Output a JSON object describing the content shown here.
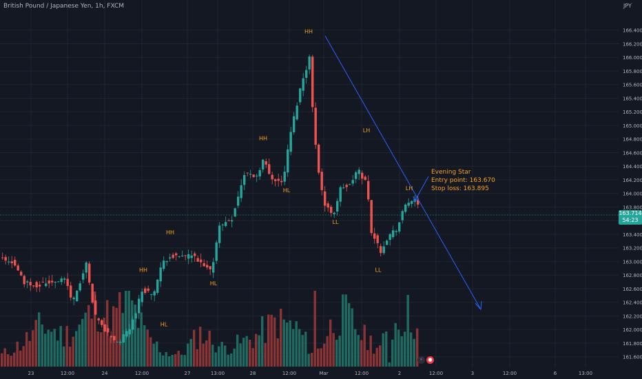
{
  "header": {
    "title": "British Pound / Japanese Yen, 1h, FXCM",
    "currency": "JPY"
  },
  "last_price": {
    "value": "163.714",
    "countdown": "54:23"
  },
  "annotation": {
    "title": "Evening Star",
    "entry": "Entry point: 163.670",
    "stop": "Stop loss: 163.895"
  },
  "colors": {
    "background": "#141823",
    "grid": "#1f2430",
    "up": "#26a69a",
    "down": "#ef5350",
    "label": "#f7a21b",
    "trendline": "#2962ff",
    "axis_text": "#b2b5be"
  },
  "chart_data": {
    "type": "candlestick",
    "title": "British Pound / Japanese Yen, 1h, FXCM",
    "ylim": [
      161.5,
      166.6
    ],
    "y_ticks": [
      "166.400",
      "166.200",
      "166.000",
      "165.800",
      "165.600",
      "165.400",
      "165.200",
      "165.000",
      "164.800",
      "164.600",
      "164.400",
      "164.200",
      "164.000",
      "163.800",
      "163.600",
      "163.400",
      "163.200",
      "163.000",
      "162.800",
      "162.600",
      "162.400",
      "162.200",
      "162.000",
      "161.800",
      "161.600"
    ],
    "x_ticks": [
      "23",
      "12:00",
      "24",
      "12:00",
      "27",
      "13:00",
      "28",
      "12:00",
      "Mar",
      "12:00",
      "2",
      "12:00",
      "3",
      "12:00",
      "6",
      "13:00"
    ],
    "path": [
      [
        0,
        162.95
      ],
      [
        20,
        162.9
      ],
      [
        38,
        162.6
      ],
      [
        55,
        162.55
      ],
      [
        75,
        162.6
      ],
      [
        97,
        162.65
      ],
      [
        108,
        162.3
      ],
      [
        128,
        162.85
      ],
      [
        140,
        162.1
      ],
      [
        158,
        161.85
      ],
      [
        175,
        161.7
      ],
      [
        193,
        161.95
      ],
      [
        210,
        162.5
      ],
      [
        225,
        162.4
      ],
      [
        238,
        162.85
      ],
      [
        250,
        163.0
      ],
      [
        262,
        162.95
      ],
      [
        280,
        163.0
      ],
      [
        295,
        162.85
      ],
      [
        310,
        162.75
      ],
      [
        320,
        163.4
      ],
      [
        340,
        163.55
      ],
      [
        358,
        164.2
      ],
      [
        375,
        164.15
      ],
      [
        385,
        164.4
      ],
      [
        395,
        164.15
      ],
      [
        413,
        164.05
      ],
      [
        425,
        164.8
      ],
      [
        440,
        165.5
      ],
      [
        452,
        165.9
      ],
      [
        458,
        164.9
      ],
      [
        467,
        164.1
      ],
      [
        475,
        163.7
      ],
      [
        487,
        163.6
      ],
      [
        498,
        164.0
      ],
      [
        510,
        164.0
      ],
      [
        522,
        164.25
      ],
      [
        535,
        164.05
      ],
      [
        542,
        163.35
      ],
      [
        555,
        163.05
      ],
      [
        565,
        163.25
      ],
      [
        580,
        163.4
      ],
      [
        592,
        163.75
      ],
      [
        603,
        163.82
      ],
      [
        608,
        163.71
      ]
    ],
    "volume_path": [
      [
        0,
        0.15
      ],
      [
        30,
        0.3
      ],
      [
        60,
        0.55
      ],
      [
        90,
        0.4
      ],
      [
        110,
        0.5
      ],
      [
        140,
        0.8
      ],
      [
        160,
        0.6
      ],
      [
        185,
        0.9
      ],
      [
        210,
        0.4
      ],
      [
        235,
        0.2
      ],
      [
        260,
        0.15
      ],
      [
        290,
        0.45
      ],
      [
        320,
        0.25
      ],
      [
        345,
        0.3
      ],
      [
        370,
        0.4
      ],
      [
        400,
        0.6
      ],
      [
        430,
        0.5
      ],
      [
        455,
        0.15
      ],
      [
        480,
        0.55
      ],
      [
        500,
        0.7
      ],
      [
        525,
        0.4
      ],
      [
        550,
        0.25
      ],
      [
        570,
        0.55
      ],
      [
        590,
        0.7
      ],
      [
        608,
        0.5
      ]
    ],
    "volume_spikes": [
      [
        457,
        0.98
      ],
      [
        562,
        0.05
      ],
      [
        606,
        0.45
      ]
    ],
    "swing_labels": [
      {
        "text": "HH",
        "x": 448,
        "y": 166.25
      },
      {
        "text": "HH",
        "x": 382,
        "y": 164.68
      },
      {
        "text": "HL",
        "x": 416,
        "y": 163.92
      },
      {
        "text": "LH",
        "x": 532,
        "y": 164.8
      },
      {
        "text": "LL",
        "x": 487,
        "y": 163.45
      },
      {
        "text": "LH",
        "x": 594,
        "y": 163.95
      },
      {
        "text": "LL",
        "x": 549,
        "y": 162.75
      },
      {
        "text": "HH",
        "x": 247,
        "y": 163.3
      },
      {
        "text": "HH",
        "x": 208,
        "y": 162.75
      },
      {
        "text": "HL",
        "x": 310,
        "y": 162.55
      },
      {
        "text": "HL",
        "x": 238,
        "y": 161.95
      }
    ]
  }
}
